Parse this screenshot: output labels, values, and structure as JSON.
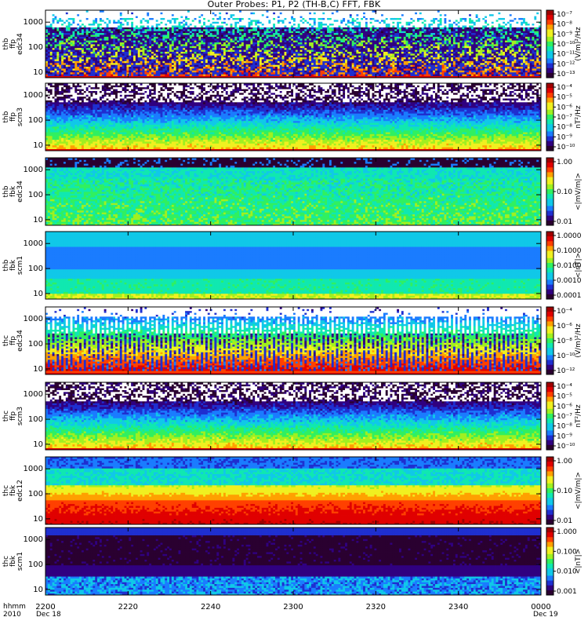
{
  "title": "Outer Probes: P1, P2 (TH-B,C) FFT, FBK",
  "footer": {
    "row_label_1": "hhmm",
    "row_label_2": "2010",
    "x_ticks": [
      "2200",
      "2220",
      "2240",
      "2300",
      "2320",
      "2340",
      "0000"
    ],
    "start_date": "Dec 18",
    "end_date": "Dec 19"
  },
  "colors": {
    "palette": [
      "#ffffff",
      "#2a0030",
      "#300080",
      "#1f2fd0",
      "#1a7cff",
      "#10c8e8",
      "#10e8b0",
      "#30f060",
      "#a0f020",
      "#f0f020",
      "#ffa000",
      "#ff4000",
      "#e00000",
      "#a00000"
    ]
  },
  "chart_data": [
    {
      "type": "heatmap",
      "ylabel": [
        "thb",
        "ffp",
        "edc34"
      ],
      "yticks": [
        10,
        100,
        1000
      ],
      "cbar_unit": "(V/m)²/Hz",
      "cbar_ticks": [
        "10⁻⁷",
        "10⁻⁸",
        "10⁻⁹",
        "10⁻¹⁰",
        "10⁻¹¹",
        "10⁻¹²",
        "10⁻¹³"
      ],
      "pattern": "spiky"
    },
    {
      "type": "heatmap",
      "ylabel": [
        "thb",
        "ffp",
        "scm3"
      ],
      "yticks": [
        10,
        100,
        1000
      ],
      "cbar_unit": "nT²/Hz",
      "cbar_ticks": [
        "10⁻⁴",
        "10⁻⁵",
        "10⁻⁶",
        "10⁻⁷",
        "10⁻⁸",
        "10⁻⁹",
        "10⁻¹⁰"
      ],
      "pattern": "scm"
    },
    {
      "type": "heatmap",
      "ylabel": [
        "thb",
        "fbk",
        "edc34"
      ],
      "yticks": [
        10,
        100,
        1000
      ],
      "cbar_unit": "<|mV/m|>",
      "cbar_ticks": [
        "1.00",
        "0.10",
        "0.01"
      ],
      "pattern": "fbk_e"
    },
    {
      "type": "heatmap",
      "ylabel": [
        "thb",
        "fbk",
        "scm1"
      ],
      "yticks": [
        10,
        100,
        1000
      ],
      "cbar_unit": "<|nT|>",
      "cbar_ticks": [
        "1.0000",
        "0.1000",
        "0.0100",
        "0.0010",
        "0.0001"
      ],
      "pattern": "fbk_b"
    },
    {
      "type": "heatmap",
      "ylabel": [
        "thc",
        "ffp",
        "edc34"
      ],
      "yticks": [
        10,
        100,
        1000
      ],
      "cbar_unit": "(V/m)²/Hz",
      "cbar_ticks": [
        "10⁻⁴",
        "10⁻⁶",
        "10⁻⁸",
        "10⁻¹⁰",
        "10⁻¹²"
      ],
      "pattern": "spiky2"
    },
    {
      "type": "heatmap",
      "ylabel": [
        "thc",
        "ffp",
        "scm3"
      ],
      "yticks": [
        10,
        100,
        1000
      ],
      "cbar_unit": "nT²/Hz",
      "cbar_ticks": [
        "10⁻⁴",
        "10⁻⁵",
        "10⁻⁶",
        "10⁻⁷",
        "10⁻⁸",
        "10⁻⁹",
        "10⁻¹⁰"
      ],
      "pattern": "scm"
    },
    {
      "type": "heatmap",
      "ylabel": [
        "thc",
        "fbk",
        "edc12"
      ],
      "yticks": [
        10,
        100,
        1000
      ],
      "cbar_unit": "<|mV/m|>",
      "cbar_ticks": [
        "1.00",
        "0.10",
        "0.01"
      ],
      "pattern": "fbk_e2"
    },
    {
      "type": "heatmap",
      "ylabel": [
        "thc",
        "fbk",
        "scm1"
      ],
      "yticks": [
        10,
        100,
        1000
      ],
      "cbar_unit": "<|nT|>",
      "cbar_ticks": [
        "1.000",
        "0.100",
        "0.010",
        "0.001"
      ],
      "pattern": "fbk_b2"
    }
  ]
}
